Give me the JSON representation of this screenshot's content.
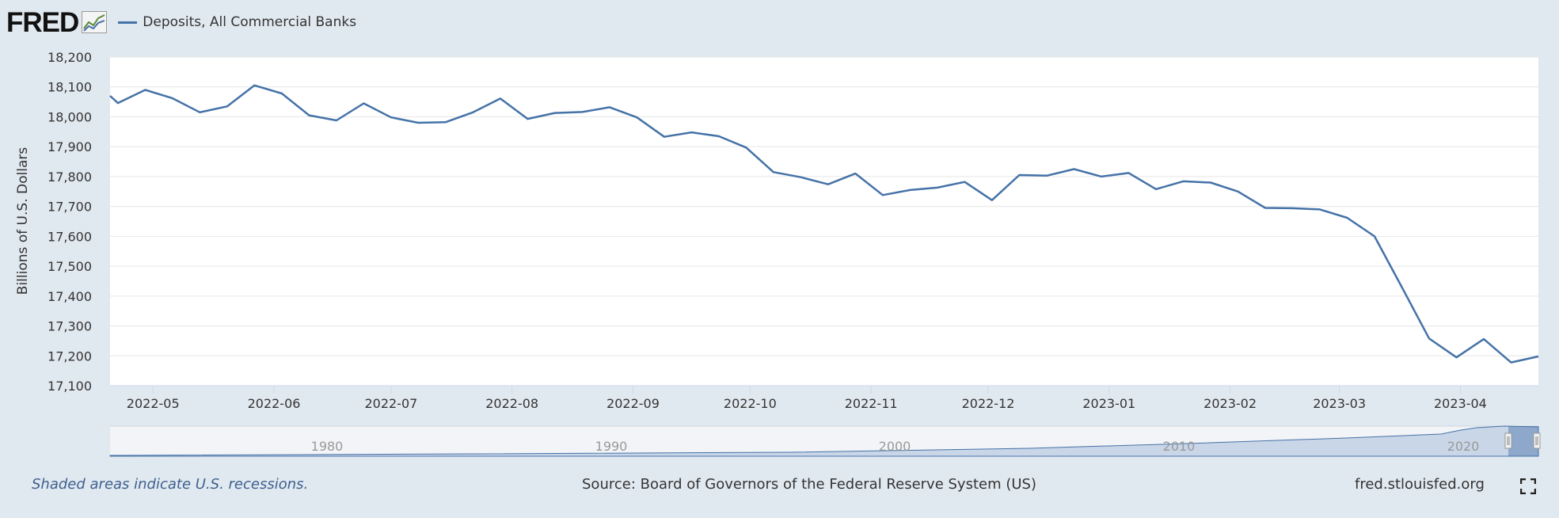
{
  "header": {
    "logo_text": "FRED",
    "logo_icon": "trend-chart-icon",
    "legend_label": "Deposits, All Commercial Banks",
    "series_color": "#4572a7"
  },
  "footer": {
    "recession_note": "Shaded areas indicate U.S. recessions.",
    "source": "Source: Board of Governors of the Federal Reserve System (US)",
    "site": "fred.stlouisfed.org",
    "fullscreen_icon": "fullscreen-icon"
  },
  "chart_data": {
    "type": "line",
    "title": "",
    "xlabel": "",
    "ylabel": "Billions of U.S. Dollars",
    "ylim": [
      17100,
      18200
    ],
    "yticks": [
      "18,200",
      "18,100",
      "18,000",
      "17,900",
      "17,800",
      "17,700",
      "17,600",
      "17,500",
      "17,400",
      "17,300",
      "17,200",
      "17,100"
    ],
    "xticks": [
      "2022-05",
      "2022-06",
      "2022-07",
      "2022-08",
      "2022-09",
      "2022-10",
      "2022-11",
      "2022-12",
      "2023-01",
      "2023-02",
      "2023-03",
      "2023-04"
    ],
    "grid": true,
    "series": [
      {
        "name": "Deposits, All Commercial Banks",
        "color": "#4572a7",
        "points": [
          [
            "2022-04-20",
            18070
          ],
          [
            "2022-04-22",
            18046
          ],
          [
            "2022-04-29",
            18090
          ],
          [
            "2022-05-06",
            18062
          ],
          [
            "2022-05-13",
            18015
          ],
          [
            "2022-05-20",
            18035
          ],
          [
            "2022-05-27",
            18105
          ],
          [
            "2022-06-03",
            18078
          ],
          [
            "2022-06-10",
            18005
          ],
          [
            "2022-06-17",
            17988
          ],
          [
            "2022-06-24",
            18045
          ],
          [
            "2022-07-01",
            17998
          ],
          [
            "2022-07-08",
            17980
          ],
          [
            "2022-07-15",
            17982
          ],
          [
            "2022-07-22",
            18015
          ],
          [
            "2022-07-29",
            18061
          ],
          [
            "2022-08-05",
            17993
          ],
          [
            "2022-08-12",
            18013
          ],
          [
            "2022-08-19",
            18016
          ],
          [
            "2022-08-26",
            18032
          ],
          [
            "2022-09-02",
            17998
          ],
          [
            "2022-09-09",
            17933
          ],
          [
            "2022-09-16",
            17948
          ],
          [
            "2022-09-23",
            17935
          ],
          [
            "2022-09-30",
            17897
          ],
          [
            "2022-10-07",
            17815
          ],
          [
            "2022-10-14",
            17798
          ],
          [
            "2022-10-21",
            17774
          ],
          [
            "2022-10-28",
            17810
          ],
          [
            "2022-11-04",
            17738
          ],
          [
            "2022-11-11",
            17755
          ],
          [
            "2022-11-18",
            17763
          ],
          [
            "2022-11-25",
            17782
          ],
          [
            "2022-12-02",
            17721
          ],
          [
            "2022-12-09",
            17805
          ],
          [
            "2022-12-16",
            17803
          ],
          [
            "2022-12-23",
            17825
          ],
          [
            "2022-12-30",
            17800
          ],
          [
            "2023-01-06",
            17812
          ],
          [
            "2023-01-13",
            17758
          ],
          [
            "2023-01-20",
            17784
          ],
          [
            "2023-01-27",
            17780
          ],
          [
            "2023-02-03",
            17750
          ],
          [
            "2023-02-10",
            17695
          ],
          [
            "2023-02-17",
            17694
          ],
          [
            "2023-02-24",
            17690
          ],
          [
            "2023-03-03",
            17662
          ],
          [
            "2023-03-10",
            17600
          ],
          [
            "2023-03-17",
            17430
          ],
          [
            "2023-03-24",
            17258
          ],
          [
            "2023-03-31",
            17195
          ],
          [
            "2023-04-07",
            17256
          ],
          [
            "2023-04-14",
            17178
          ],
          [
            "2023-04-21",
            17198
          ]
        ]
      }
    ],
    "navigator": {
      "labels": [
        "1980",
        "1990",
        "2000",
        "2010",
        "2020"
      ]
    }
  }
}
